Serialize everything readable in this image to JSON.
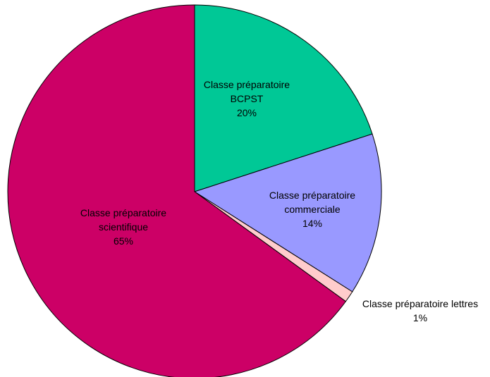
{
  "chart_data": {
    "type": "pie",
    "categories": [
      "Classe préparatoire BCPST",
      "Classe préparatoire commerciale",
      "Classe préparatoire lettres",
      "Classe préparatoire scientifique"
    ],
    "values": [
      20,
      14,
      1,
      65
    ],
    "value_labels": [
      "20%",
      "14%",
      "1%",
      "65%"
    ],
    "colors": [
      "#00c896",
      "#9999ff",
      "#ffcccc",
      "#cc0066"
    ]
  }
}
